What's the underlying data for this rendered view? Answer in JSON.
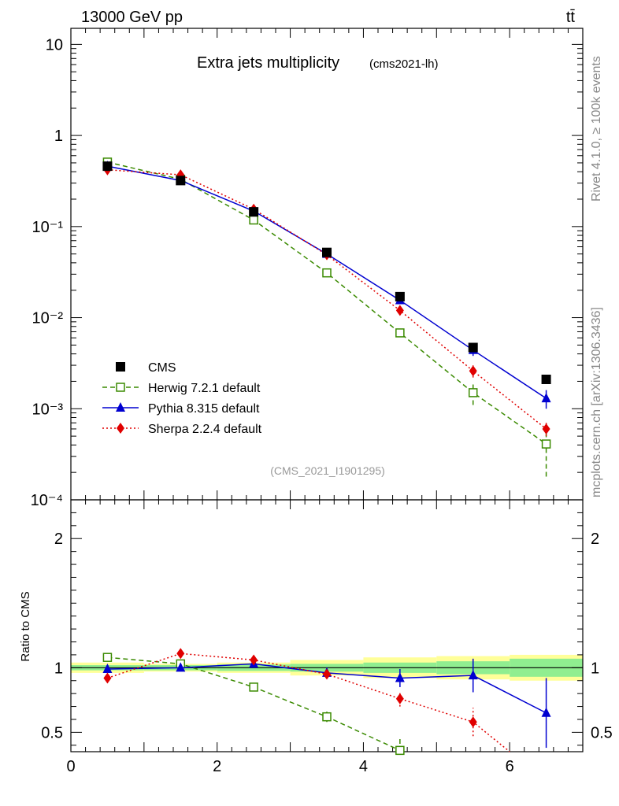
{
  "header": {
    "energy_label": "13000 GeV pp",
    "process_label": "tt̄",
    "side_version": "Rivet 4.1.0, ≥ 100k events",
    "side_site": "mcplots.cern.ch [arXiv:1306.3436]",
    "analysis_id": "(CMS_2021_I1901295)"
  },
  "chart_data": [
    {
      "type": "line",
      "panel": "main",
      "title": "Extra jets multiplicity",
      "subtitle": "(cms2021-lh)",
      "yscale": "log",
      "ylim": [
        0.0001,
        15
      ],
      "xlim": [
        0,
        7
      ],
      "ytick_labels": [
        {
          "value": 10,
          "label": "10"
        },
        {
          "value": 1,
          "label": "1"
        },
        {
          "value": 0.1,
          "label": "10⁻¹"
        },
        {
          "value": 0.01,
          "label": "10⁻²"
        },
        {
          "value": 0.001,
          "label": "10⁻³"
        },
        {
          "value": 0.0001,
          "label": "10⁻⁴"
        }
      ],
      "legend_position": "lower-left",
      "series": [
        {
          "name": "CMS",
          "color": "#000000",
          "marker": "square-filled",
          "style": "none",
          "x": [
            0.5,
            1.5,
            2.5,
            3.5,
            4.5,
            5.5,
            6.5
          ],
          "y": [
            0.46,
            0.32,
            0.145,
            0.052,
            0.017,
            0.0047,
            0.0021
          ]
        },
        {
          "name": "Herwig 7.2.1 default",
          "color": "#3a8a00",
          "marker": "square-open",
          "style": "dashed",
          "x": [
            0.5,
            1.5,
            2.5,
            3.5,
            4.5,
            5.5,
            6.5
          ],
          "y": [
            0.51,
            0.33,
            0.118,
            0.031,
            0.0068,
            0.0015,
            0.00041
          ],
          "err_low": [
            0,
            0,
            0,
            0,
            0.0007,
            0.0004,
            0.00023
          ],
          "err_high": [
            0,
            0,
            0,
            0,
            0.0007,
            0.0004,
            0.0002
          ]
        },
        {
          "name": "Pythia 8.315 default",
          "color": "#0000d0",
          "marker": "triangle-filled",
          "style": "solid",
          "x": [
            0.5,
            1.5,
            2.5,
            3.5,
            4.5,
            5.5,
            6.5
          ],
          "y": [
            0.46,
            0.32,
            0.148,
            0.05,
            0.0155,
            0.0044,
            0.0013
          ],
          "err_low": [
            0,
            0,
            0,
            0,
            0.0012,
            0.0006,
            0.0003
          ],
          "err_high": [
            0,
            0,
            0,
            0,
            0.0012,
            0.0006,
            0.0003
          ]
        },
        {
          "name": "Sherpa 2.2.4 default",
          "color": "#e00000",
          "marker": "diamond-filled",
          "style": "dotted",
          "x": [
            0.5,
            1.5,
            2.5,
            3.5,
            4.5,
            5.5,
            6.5
          ],
          "y": [
            0.42,
            0.37,
            0.155,
            0.049,
            0.012,
            0.0026,
            0.0006
          ],
          "err_low": [
            0,
            0,
            0,
            0,
            0.001,
            0.0004,
            0.0001
          ],
          "err_high": [
            0,
            0,
            0,
            0,
            0.001,
            0.0004,
            0.0001
          ]
        }
      ]
    },
    {
      "type": "line",
      "panel": "ratio",
      "ylabel": "Ratio to CMS",
      "xlabel": "",
      "ylim": [
        0.35,
        2.3
      ],
      "xlim": [
        0,
        7
      ],
      "xticks": [
        0,
        2,
        4,
        6
      ],
      "xtick_labels": [
        "0",
        "2",
        "4",
        "6"
      ],
      "yticks": [
        0.5,
        1,
        2
      ],
      "ytick_labels": [
        "0.5",
        "1",
        "2"
      ],
      "bands": {
        "bins": [
          [
            0,
            1
          ],
          [
            1,
            2
          ],
          [
            2,
            3
          ],
          [
            3,
            4
          ],
          [
            4,
            5
          ],
          [
            5,
            6
          ],
          [
            6,
            7
          ]
        ],
        "inner": [
          0.02,
          0.02,
          0.025,
          0.03,
          0.04,
          0.05,
          0.07
        ],
        "outer": [
          0.04,
          0.03,
          0.04,
          0.06,
          0.08,
          0.09,
          0.1
        ],
        "inner_color": "#90ee90",
        "outer_color": "#ffff99"
      },
      "series": [
        {
          "name": "Herwig 7.2.1 default",
          "color": "#3a8a00",
          "marker": "square-open",
          "style": "dashed",
          "x": [
            0.5,
            1.5,
            2.5,
            3.5,
            4.5
          ],
          "y": [
            1.08,
            1.03,
            0.85,
            0.62,
            0.36
          ],
          "err": [
            0,
            0,
            0,
            0.04,
            0.09
          ]
        },
        {
          "name": "Pythia 8.315 default",
          "color": "#0000d0",
          "marker": "triangle-filled",
          "style": "solid",
          "x": [
            0.5,
            1.5,
            2.5,
            3.5,
            4.5,
            5.5,
            6.5
          ],
          "y": [
            0.99,
            1.0,
            1.03,
            0.96,
            0.92,
            0.94,
            0.65
          ],
          "err": [
            0,
            0,
            0,
            0.04,
            0.07,
            0.13,
            0.27
          ]
        },
        {
          "name": "Sherpa 2.2.4 default",
          "color": "#e00000",
          "marker": "diamond-filled",
          "style": "dotted",
          "x": [
            0.5,
            1.5,
            2.5,
            3.5,
            4.5,
            5.5,
            6.0
          ],
          "y": [
            0.92,
            1.11,
            1.06,
            0.95,
            0.76,
            0.58,
            0.35
          ],
          "err": [
            0,
            0,
            0,
            0.03,
            0.06,
            0.11,
            0
          ],
          "markers": [
            true,
            true,
            true,
            true,
            true,
            true,
            false
          ]
        }
      ]
    }
  ]
}
